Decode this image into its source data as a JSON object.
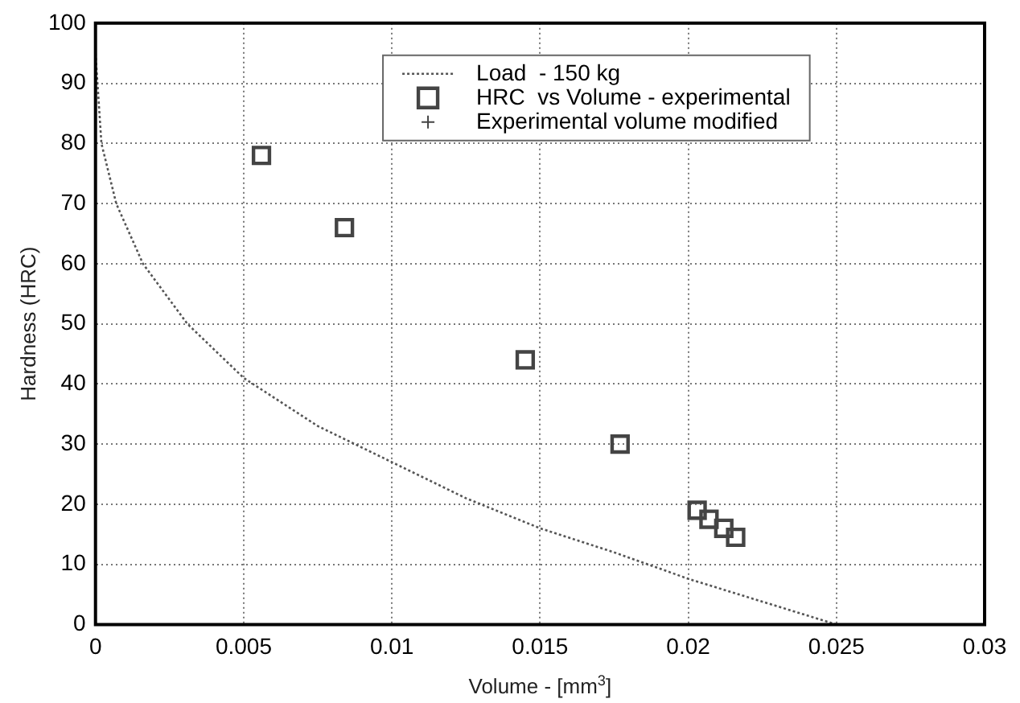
{
  "chart_data": {
    "type": "scatter",
    "xlabel": "Volume - [mm$^{3}$]",
    "ylabel": "Hardness (HRC)",
    "xlim": [
      0,
      0.03
    ],
    "xticks": [
      0,
      0.005,
      0.01,
      0.015,
      0.02,
      0.025,
      0.03
    ],
    "ylim": [
      0,
      100
    ],
    "yticks": [
      0,
      10,
      20,
      30,
      40,
      50,
      60,
      70,
      80,
      90,
      100
    ],
    "grid": true,
    "legend": "top",
    "series": [
      {
        "name": "Load  - 150 kg",
        "type": "line",
        "color": "#555555",
        "marker": "none",
        "line_style": "dotted",
        "x": [
          0,
          0.0002,
          0.0007,
          0.0016,
          0.0031,
          0.005,
          0.0075,
          0.01,
          0.0125,
          0.015,
          0.0175,
          0.02,
          0.0225,
          0.025
        ],
        "values": [
          95,
          80,
          70,
          60,
          50,
          41,
          33,
          27,
          21,
          16,
          12,
          7.6,
          3.8,
          0
        ]
      },
      {
        "name": "HRC  vs Volume - experimental",
        "type": "scatter",
        "color": "#444444",
        "marker": "square",
        "x": [
          0.0056,
          0.0084,
          0.0145,
          0.0177,
          0.0203,
          0.0207,
          0.0212,
          0.0216
        ],
        "values": [
          78,
          66,
          44,
          30,
          19,
          17.5,
          16,
          14.5
        ]
      },
      {
        "name": "Experimental volume modified",
        "type": "scatter",
        "color": "#444444",
        "marker": "cross",
        "values": [
          null
        ]
      }
    ]
  }
}
